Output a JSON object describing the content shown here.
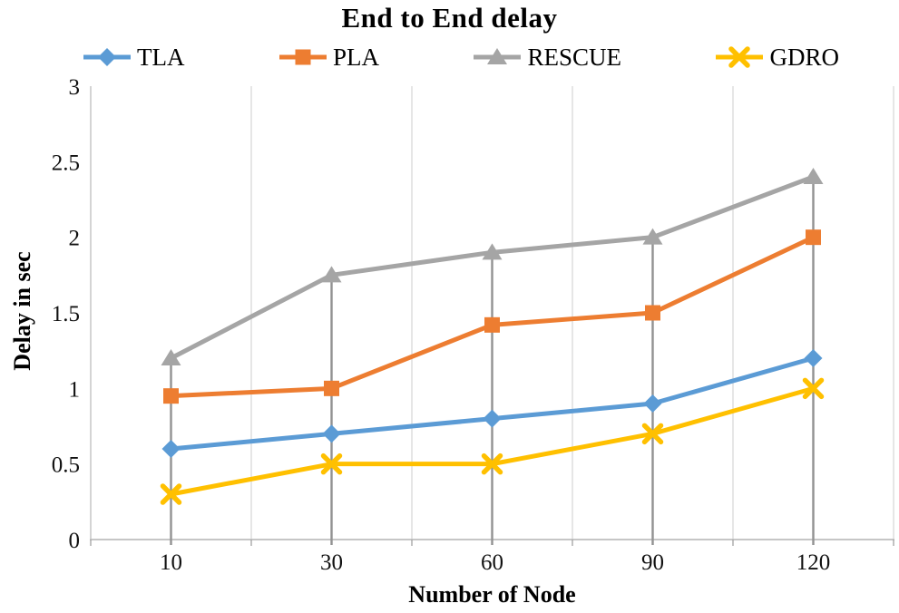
{
  "chart_data": {
    "type": "line",
    "title": "End to End delay",
    "xlabel": "Number of Node",
    "ylabel": "Delay in sec",
    "categories": [
      "10",
      "30",
      "60",
      "90",
      "120"
    ],
    "series": [
      {
        "name": "TLA",
        "color": "#5B9BD5",
        "marker": "diamond",
        "values": [
          0.6,
          0.7,
          0.8,
          0.9,
          1.2
        ]
      },
      {
        "name": "PLA",
        "color": "#ED7D31",
        "marker": "square",
        "values": [
          0.95,
          1.0,
          1.42,
          1.5,
          2.0
        ]
      },
      {
        "name": "RESCUE",
        "color": "#A5A5A5",
        "marker": "triangle",
        "values": [
          1.2,
          1.75,
          1.9,
          2.0,
          2.4
        ]
      },
      {
        "name": "GDRO",
        "color": "#FFC000",
        "marker": "x",
        "values": [
          0.3,
          0.5,
          0.5,
          0.7,
          1.0
        ]
      }
    ],
    "ylim": [
      0,
      3
    ],
    "ytick_step": 0.5,
    "ytick_labels": [
      "0",
      "0.5",
      "1",
      "1.5",
      "2",
      "2.5",
      "3"
    ],
    "legend_position": "top",
    "grid": "vertical-only",
    "drop_lines": true,
    "styles": {
      "gridline_color": "#D9D9D9",
      "axis_line_color": "#C6C6C6",
      "tick_mark_color": "#9A9A9A",
      "drop_line_color": "#929292",
      "text_color": "#111111"
    }
  }
}
